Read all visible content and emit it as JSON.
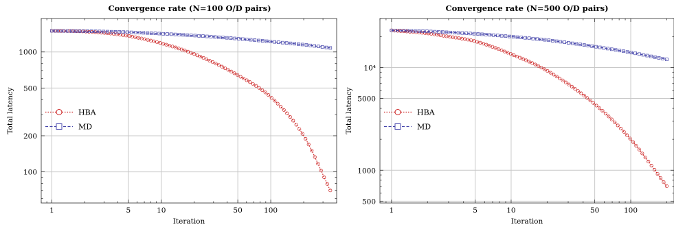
{
  "chart_data": [
    {
      "type": "line",
      "title": "Convergence rate (N=100 O/D pairs)",
      "xlabel": "Iteration",
      "ylabel": "Total latency",
      "x_scale": "log",
      "y_scale": "log",
      "xlim": [
        0.8,
        400
      ],
      "ylim": [
        55,
        1900
      ],
      "x_ticks": [
        1,
        5,
        10,
        50,
        100
      ],
      "x_tick_labels": [
        "1",
        "5",
        "10",
        "50",
        "100"
      ],
      "y_ticks": [
        100,
        200,
        500,
        1000
      ],
      "y_tick_labels": [
        "100",
        "200",
        "500",
        "1000"
      ],
      "grid": true,
      "legend_position": "left-middle",
      "series": [
        {
          "name": "HBA",
          "color": "#cc2222",
          "marker": "circle",
          "line_style": "dotted",
          "x": [
            1,
            2,
            3,
            5,
            10,
            20,
            50,
            100,
            200,
            350
          ],
          "y": [
            1500,
            1480,
            1440,
            1360,
            1180,
            960,
            640,
            420,
            200,
            70
          ]
        },
        {
          "name": "MD",
          "color": "#4444aa",
          "marker": "square",
          "line_style": "dashed",
          "x": [
            1,
            2,
            3,
            5,
            10,
            20,
            50,
            100,
            200,
            350
          ],
          "y": [
            1500,
            1490,
            1480,
            1460,
            1420,
            1370,
            1290,
            1220,
            1150,
            1080
          ]
        }
      ]
    },
    {
      "type": "line",
      "title": "Convergence rate (N=500 O/D pairs)",
      "xlabel": "Iteration",
      "ylabel": "Total latency",
      "x_scale": "log",
      "y_scale": "log",
      "xlim": [
        0.8,
        230
      ],
      "ylim": [
        480,
        30000
      ],
      "x_ticks": [
        1,
        5,
        10,
        50,
        100
      ],
      "x_tick_labels": [
        "1",
        "5",
        "10",
        "50",
        "100"
      ],
      "y_ticks": [
        500,
        1000,
        5000,
        10000
      ],
      "y_tick_labels": [
        "500",
        "1000",
        "5000",
        "10⁴"
      ],
      "grid": true,
      "legend_position": "left-middle",
      "series": [
        {
          "name": "HBA",
          "color": "#cc2222",
          "marker": "circle",
          "line_style": "dotted",
          "x": [
            1,
            2,
            3,
            5,
            10,
            20,
            50,
            100,
            200
          ],
          "y": [
            23000,
            21500,
            20000,
            18000,
            13500,
            9300,
            4400,
            2000,
            700
          ]
        },
        {
          "name": "MD",
          "color": "#4444aa",
          "marker": "square",
          "line_style": "dashed",
          "x": [
            1,
            2,
            3,
            5,
            10,
            20,
            50,
            100,
            200
          ],
          "y": [
            23000,
            22500,
            22000,
            21300,
            20000,
            18500,
            16000,
            14000,
            12000
          ]
        }
      ]
    }
  ]
}
